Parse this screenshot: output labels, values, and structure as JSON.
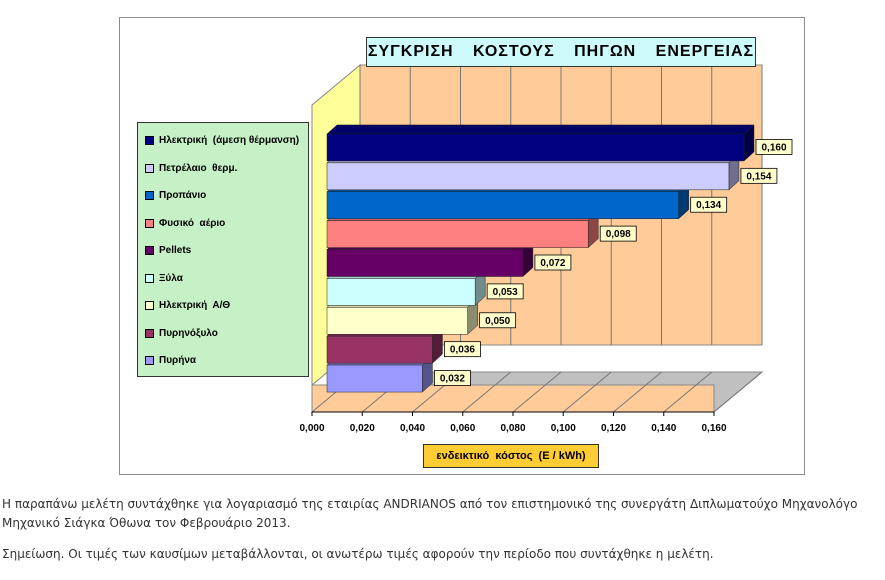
{
  "chart_data": {
    "type": "bar",
    "orientation": "horizontal",
    "three_d": true,
    "title": "ΣΥΓΚΡΙΣΗ  ΚΟΣΤΟΥΣ  ΠΗΓΩΝ  ΕΝΕΡΓΕΙΑΣ",
    "xlabel": "ενδεικτικό  κόστος  (Ε / kWh)",
    "ylabel": "",
    "xlim": [
      0,
      0.16
    ],
    "xticks": [
      "0,000",
      "0,020",
      "0,040",
      "0,060",
      "0,080",
      "0,100",
      "0,120",
      "0,140",
      "0,160"
    ],
    "grid": true,
    "legend_placement": "left",
    "series": [
      {
        "name": "Ηλεκτρική  (άμεση θέρμανση)",
        "value": 0.16,
        "label": "0,160",
        "color": "#000080"
      },
      {
        "name": "Πετρέλαιο  θερμ.",
        "value": 0.154,
        "label": "0,154",
        "color": "#ccccff"
      },
      {
        "name": "Προπάνιο",
        "value": 0.134,
        "label": "0,134",
        "color": "#0066cc"
      },
      {
        "name": "Φυσικό  αέριο",
        "value": 0.098,
        "label": "0,098",
        "color": "#ff8080"
      },
      {
        "name": "Pellets",
        "value": 0.072,
        "label": "0,072",
        "color": "#660066"
      },
      {
        "name": "Ξύλα",
        "value": 0.053,
        "label": "0,053",
        "color": "#ccffff"
      },
      {
        "name": "Ηλεκτρική  Α/Θ",
        "value": 0.05,
        "label": "0,050",
        "color": "#ffffcc"
      },
      {
        "name": "Πυρηνόξυλο",
        "value": 0.036,
        "label": "0,036",
        "color": "#993366"
      },
      {
        "name": "Πυρήνα",
        "value": 0.032,
        "label": "0,032",
        "color": "#9999ff"
      }
    ],
    "colors": {
      "wall": "#ffcc99",
      "side_wall": "#ffff99",
      "floor": "#c0c0c0",
      "data_label_bg": "#ffffcc",
      "title_bg": "#ccffff",
      "legend_bg": "#ccffcc",
      "xlabel_bg": "#ffcc33"
    }
  },
  "notes": {
    "line1": "Η παραπάνω μελέτη συντάχθηκε για λογαριασμό της εταιρίας ANDRIANOS από τον επιστημονικό της συνεργάτη Διπλωματούχο Μηχανολόγο Μηχανικό Σιάγκα Όθωνα τον Φεβρουάριο 2013.",
    "line2": "Σημείωση. Οι τιμές των καυσίμων μεταβάλλονται, οι ανωτέρω τιμές αφορούν την περίοδο που συντάχθηκε η μελέτη."
  }
}
